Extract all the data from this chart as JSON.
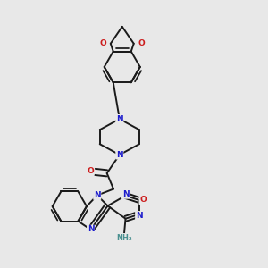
{
  "bg_color": "#e8e8e8",
  "bond_color": "#1a1a1a",
  "bond_width": 1.4,
  "atom_colors": {
    "N": "#1c1ccc",
    "O": "#cc1c1c",
    "NH2": "#4a9090",
    "C": "#1a1a1a"
  },
  "font_size_atom": 6.5,
  "figsize": [
    3.0,
    3.0
  ],
  "dpi": 100
}
